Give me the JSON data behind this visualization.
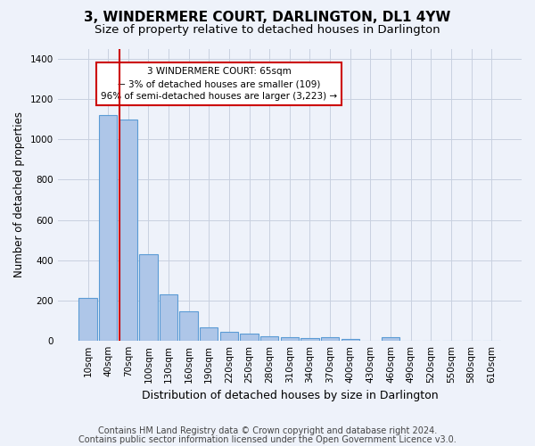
{
  "title": "3, WINDERMERE COURT, DARLINGTON, DL1 4YW",
  "subtitle": "Size of property relative to detached houses in Darlington",
  "xlabel": "Distribution of detached houses by size in Darlington",
  "ylabel": "Number of detached properties",
  "categories": [
    "10sqm",
    "40sqm",
    "70sqm",
    "100sqm",
    "130sqm",
    "160sqm",
    "190sqm",
    "220sqm",
    "250sqm",
    "280sqm",
    "310sqm",
    "340sqm",
    "370sqm",
    "400sqm",
    "430sqm",
    "460sqm",
    "490sqm",
    "520sqm",
    "550sqm",
    "580sqm",
    "610sqm"
  ],
  "values": [
    210,
    1120,
    1100,
    430,
    230,
    145,
    65,
    45,
    35,
    22,
    15,
    13,
    15,
    10,
    0,
    15,
    0,
    0,
    0,
    0,
    0
  ],
  "bar_color": "#aec6e8",
  "bar_edge_color": "#5b9bd5",
  "grid_color": "#c8d0e0",
  "background_color": "#eef2fa",
  "annotation_line1": "3 WINDERMERE COURT: 65sqm",
  "annotation_line2": "← 3% of detached houses are smaller (109)",
  "annotation_line3": "96% of semi-detached houses are larger (3,223) →",
  "annotation_box_color": "#ffffff",
  "annotation_box_edge_color": "#cc0000",
  "reference_line_color": "#cc0000",
  "ylim": [
    0,
    1450
  ],
  "yticks": [
    0,
    200,
    400,
    600,
    800,
    1000,
    1200,
    1400
  ],
  "footnote1": "Contains HM Land Registry data © Crown copyright and database right 2024.",
  "footnote2": "Contains public sector information licensed under the Open Government Licence v3.0.",
  "title_fontsize": 11,
  "subtitle_fontsize": 9.5,
  "xlabel_fontsize": 9,
  "ylabel_fontsize": 8.5,
  "tick_fontsize": 7.5,
  "annotation_fontsize": 7.5,
  "footnote_fontsize": 7
}
